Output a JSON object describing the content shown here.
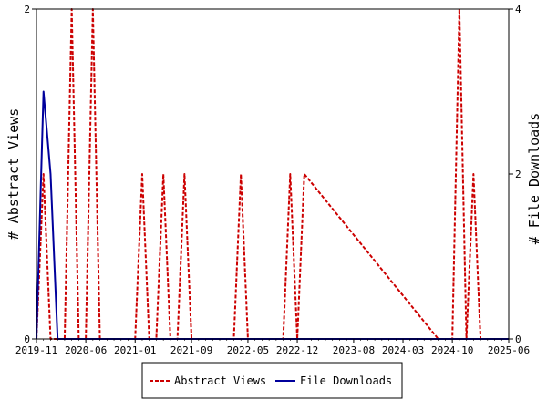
{
  "chart_data": {
    "type": "line",
    "ylabel_left": "# Abstract Views",
    "ylabel_right": "# File Downloads",
    "y_left_ticks": [
      "0",
      "2"
    ],
    "y_right_ticks": [
      "0",
      "2",
      "4"
    ],
    "ylim_left": [
      0,
      2
    ],
    "ylim_right": [
      0,
      4
    ],
    "x_tick_labels": [
      "2019-11",
      "2020-06",
      "2021-01",
      "2021-09",
      "2022-05",
      "2022-12",
      "2023-08",
      "2024-03",
      "2024-10",
      "2025-06"
    ],
    "xlim": [
      "2019-11",
      "2025-06"
    ],
    "legend_position": "bottom-center",
    "series": [
      {
        "name": "Abstract Views",
        "axis": "left",
        "color": "#cc0000",
        "style": "dashed",
        "x": [
          "2019-11",
          "2019-12",
          "2020-01",
          "2020-02",
          "2020-03",
          "2020-04",
          "2020-05",
          "2020-06",
          "2020-07",
          "2020-08",
          "2020-09",
          "2020-10",
          "2020-11",
          "2020-12",
          "2021-01",
          "2021-02",
          "2021-03",
          "2021-04",
          "2021-05",
          "2021-06",
          "2021-07",
          "2021-08",
          "2021-09",
          "2021-10",
          "2021-11",
          "2021-12",
          "2022-01",
          "2022-02",
          "2022-03",
          "2022-04",
          "2022-05",
          "2022-06",
          "2022-07",
          "2022-08",
          "2022-09",
          "2022-10",
          "2022-11",
          "2022-12",
          "2023-01",
          "2024-08",
          "2024-09",
          "2024-10",
          "2024-11",
          "2024-12",
          "2025-01",
          "2025-02",
          "2025-06"
        ],
        "values": [
          0,
          1,
          0,
          0,
          0,
          2,
          0,
          0,
          2,
          0,
          0,
          0,
          0,
          0,
          0,
          1,
          0,
          0,
          1,
          0,
          0,
          1,
          0,
          0,
          0,
          0,
          0,
          0,
          0,
          1,
          0,
          0,
          0,
          0,
          0,
          0,
          1,
          0,
          1,
          0,
          0,
          0,
          2,
          0,
          1,
          0,
          0
        ]
      },
      {
        "name": "File Downloads",
        "axis": "right",
        "color": "#00009c",
        "style": "solid",
        "x": [
          "2019-11",
          "2019-12",
          "2020-01",
          "2020-02",
          "2025-06"
        ],
        "values": [
          0,
          3,
          2,
          0,
          0
        ]
      }
    ]
  },
  "colors": {
    "axis": "#000000",
    "plot_bg": "#ffffff"
  }
}
